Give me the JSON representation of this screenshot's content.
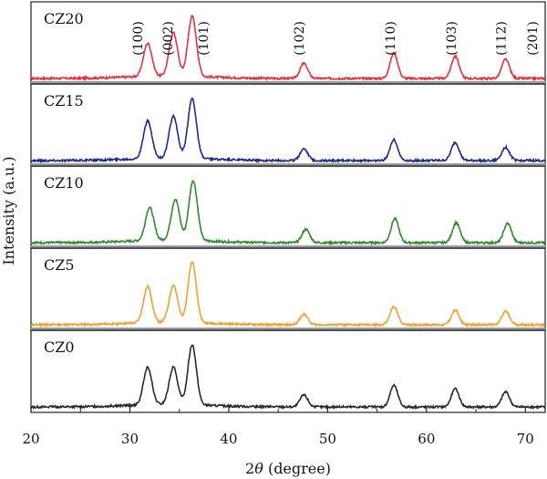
{
  "chart_data": {
    "type": "line",
    "xlabel": "2θ (degree)",
    "ylabel": "Intensity (a.u.)",
    "xlim": [
      20,
      72
    ],
    "x_ticks": [
      20,
      30,
      40,
      50,
      60,
      70
    ],
    "layout": "stacked panels, one sample per panel, shared x axis",
    "grid": false,
    "peak_labels": [
      {
        "x": 30.9,
        "text": "(100)"
      },
      {
        "x": 33.9,
        "text": "(002)"
      },
      {
        "x": 37.5,
        "text": "(101)"
      },
      {
        "x": 47.2,
        "text": "(102)"
      },
      {
        "x": 56.4,
        "text": "(110)"
      },
      {
        "x": 62.6,
        "text": "(103)"
      },
      {
        "x": 67.6,
        "text": "(112)"
      },
      {
        "x": 70.8,
        "text": "(201)"
      }
    ],
    "series": [
      {
        "name": "CZ20",
        "color": "#e8303a",
        "peaks": [
          [
            31.8,
            0.55
          ],
          [
            34.4,
            0.72
          ],
          [
            36.3,
            1.0
          ],
          [
            47.6,
            0.25
          ],
          [
            56.7,
            0.42
          ],
          [
            62.9,
            0.37
          ],
          [
            68.0,
            0.32
          ]
        ]
      },
      {
        "name": "CZ15",
        "color": "#1f2b8f",
        "peaks": [
          [
            31.8,
            0.62
          ],
          [
            34.4,
            0.7
          ],
          [
            36.3,
            1.0
          ],
          [
            47.6,
            0.2
          ],
          [
            56.7,
            0.35
          ],
          [
            62.9,
            0.3
          ],
          [
            68.0,
            0.22
          ]
        ]
      },
      {
        "name": "CZ10",
        "color": "#2e8b2e",
        "peaks": [
          [
            32.0,
            0.55
          ],
          [
            34.6,
            0.68
          ],
          [
            36.4,
            1.0
          ],
          [
            47.8,
            0.22
          ],
          [
            56.8,
            0.4
          ],
          [
            63.0,
            0.33
          ],
          [
            68.2,
            0.32
          ]
        ]
      },
      {
        "name": "CZ5",
        "color": "#f0a030",
        "peaks": [
          [
            31.8,
            0.6
          ],
          [
            34.4,
            0.62
          ],
          [
            36.3,
            1.0
          ],
          [
            47.6,
            0.18
          ],
          [
            56.7,
            0.3
          ],
          [
            62.9,
            0.24
          ],
          [
            68.0,
            0.22
          ]
        ]
      },
      {
        "name": "CZ0",
        "color": "#2a2a2a",
        "peaks": [
          [
            31.8,
            0.62
          ],
          [
            34.4,
            0.62
          ],
          [
            36.3,
            1.0
          ],
          [
            47.6,
            0.2
          ],
          [
            56.7,
            0.36
          ],
          [
            62.9,
            0.3
          ],
          [
            68.0,
            0.25
          ]
        ]
      }
    ]
  }
}
